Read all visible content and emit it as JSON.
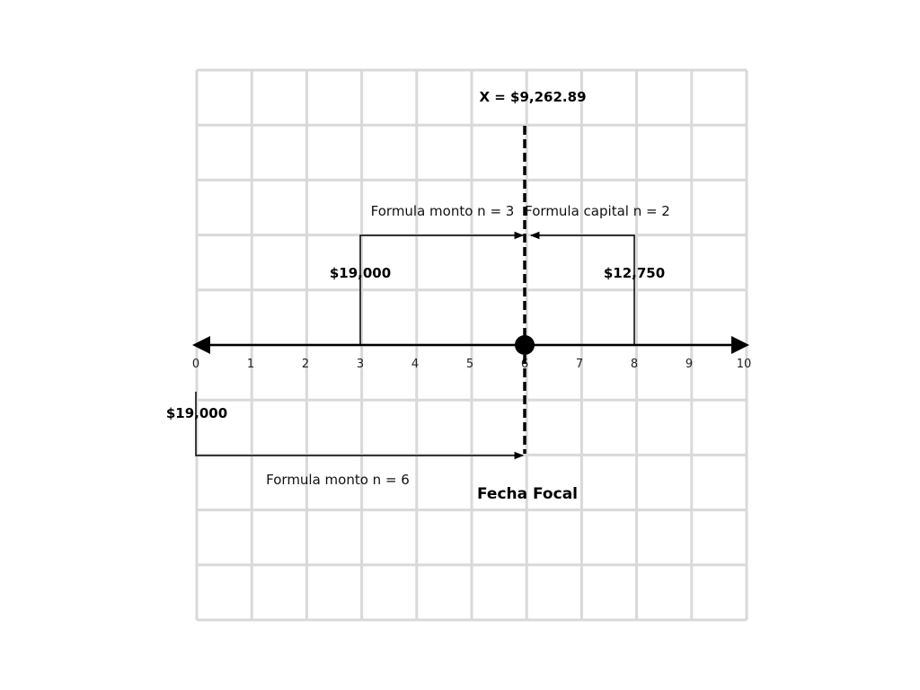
{
  "result_label": "X = $9,262.89",
  "focal_label": "Fecha Focal",
  "focal_period": 6,
  "axis": {
    "min": 0,
    "max": 10,
    "ticks": [
      "0",
      "1",
      "2",
      "3",
      "4",
      "5",
      "6",
      "7",
      "8",
      "9",
      "10"
    ]
  },
  "payments": [
    {
      "period": 3,
      "amount": "$19,000",
      "side": "above",
      "formula": "Formula monto n = 3"
    },
    {
      "period": 8,
      "amount": "$12,750",
      "side": "above",
      "formula": "Formula capital n = 2"
    },
    {
      "period": 0,
      "amount": "$19,000",
      "side": "below",
      "formula": "Formula monto n = 6"
    }
  ],
  "colors": {
    "grid": "#d9d9d9",
    "ink": "#000000"
  }
}
